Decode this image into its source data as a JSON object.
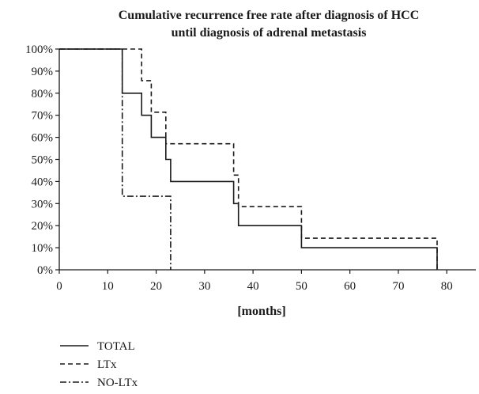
{
  "chart_data": {
    "type": "line",
    "title_lines": [
      "Cumulative recurrence free rate after diagnosis of HCC",
      "until diagnosis of adrenal metastasis"
    ],
    "xlabel": "[months]",
    "ylabel": "",
    "xlim": [
      0,
      86
    ],
    "ylim": [
      0,
      100
    ],
    "x_ticks": [
      0,
      10,
      20,
      30,
      40,
      50,
      60,
      70,
      80
    ],
    "y_ticks": [
      0,
      10,
      20,
      30,
      40,
      50,
      60,
      70,
      80,
      90,
      100
    ],
    "y_tick_suffix": "%",
    "grid": false,
    "legend_position": "bottom-left",
    "series": [
      {
        "name": "TOTAL",
        "style": "solid",
        "color": "#1a1a1a",
        "points": [
          [
            0,
            100
          ],
          [
            13,
            100
          ],
          [
            13,
            80
          ],
          [
            17,
            80
          ],
          [
            17,
            70
          ],
          [
            19,
            70
          ],
          [
            19,
            60
          ],
          [
            22,
            60
          ],
          [
            22,
            50
          ],
          [
            23,
            50
          ],
          [
            23,
            40
          ],
          [
            36,
            40
          ],
          [
            36,
            30
          ],
          [
            37,
            30
          ],
          [
            37,
            20
          ],
          [
            50,
            20
          ],
          [
            50,
            10
          ],
          [
            78,
            10
          ],
          [
            78,
            0
          ]
        ]
      },
      {
        "name": "LTx",
        "style": "dashed",
        "color": "#1a1a1a",
        "points": [
          [
            0,
            100
          ],
          [
            17,
            100
          ],
          [
            17,
            85.7
          ],
          [
            19,
            85.7
          ],
          [
            19,
            71.4
          ],
          [
            22,
            71.4
          ],
          [
            22,
            57.1
          ],
          [
            36,
            57.1
          ],
          [
            36,
            42.9
          ],
          [
            37,
            42.9
          ],
          [
            37,
            28.6
          ],
          [
            50,
            28.6
          ],
          [
            50,
            14.3
          ],
          [
            78,
            14.3
          ],
          [
            78,
            0
          ]
        ]
      },
      {
        "name": "NO-LTx",
        "style": "dashdot",
        "color": "#1a1a1a",
        "points": [
          [
            0,
            100
          ],
          [
            13,
            100
          ],
          [
            13,
            33.3
          ],
          [
            23,
            33.3
          ],
          [
            23,
            0
          ]
        ]
      }
    ]
  }
}
